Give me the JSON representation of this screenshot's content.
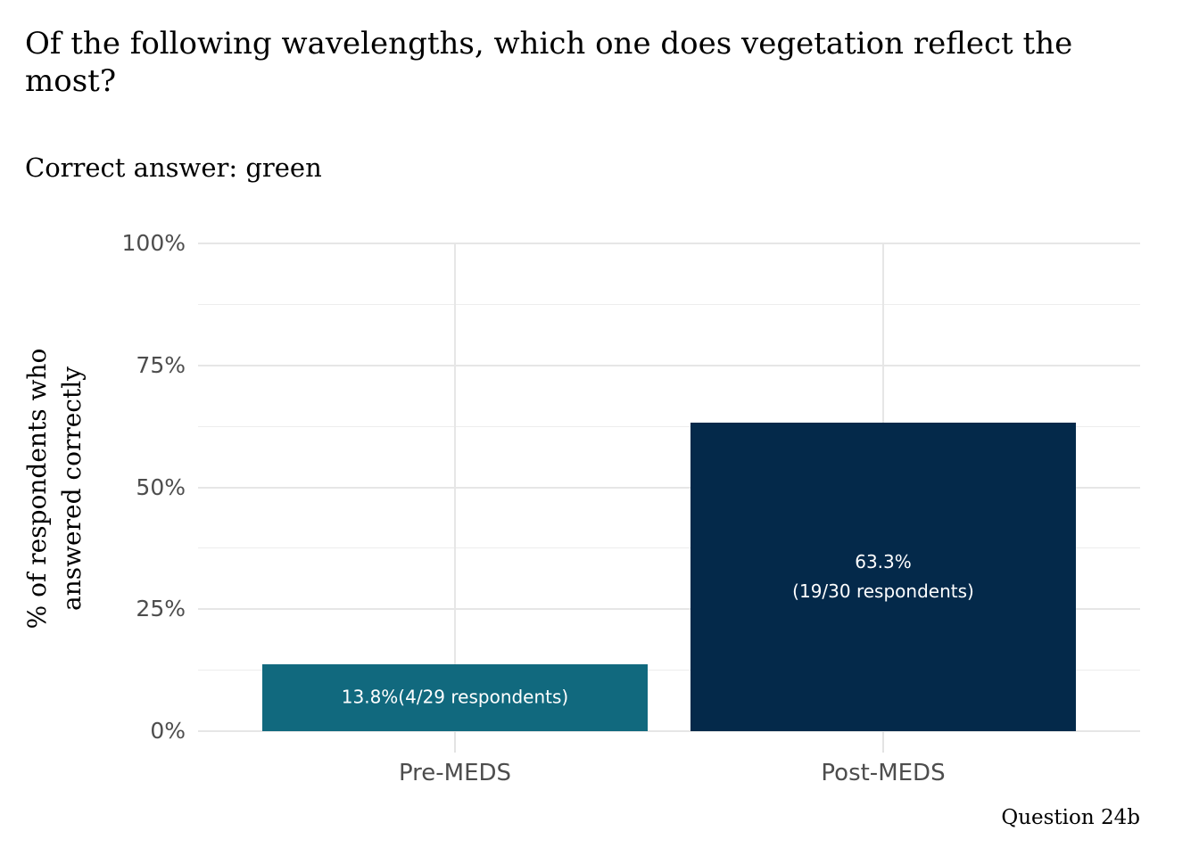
{
  "chart_data": {
    "type": "bar",
    "title": "Of the following wavelengths, which one does vegetation reflect the most?",
    "title_lines": [
      "Of the following wavelengths, which one does vegetation reflect the",
      "most?"
    ],
    "subtitle": "Correct answer: green",
    "caption": "Question 24b",
    "xlabel": "",
    "ylabel": "% of respondents who answered correctly",
    "ylabel_lines": [
      "% of respondents who",
      "answered correctly"
    ],
    "categories": [
      "Pre-MEDS",
      "Post-MEDS"
    ],
    "values": [
      13.8,
      63.3
    ],
    "respondent_fractions": [
      "4/29",
      "19/30"
    ],
    "bar_labels": [
      [
        "13.8%(4/29 respondents)"
      ],
      [
        "63.3%",
        "(19/30 respondents)"
      ]
    ],
    "bar_colors": [
      "#11697E",
      "#04294A"
    ],
    "bar_label_color": "#FFFFFF",
    "ylim": [
      0,
      100
    ],
    "yticks": [
      0,
      25,
      50,
      75,
      100
    ],
    "ytick_labels": [
      "0%",
      "25%",
      "50%",
      "75%",
      "100%"
    ],
    "minor_yticks": [
      12.5,
      37.5,
      62.5,
      87.5
    ],
    "grid": true,
    "legend": false,
    "colors": {
      "axis_text": "#4D4D4D",
      "grid_major": "#E6E6E6",
      "grid_minor": "#EDEDED",
      "tick_mark": "#E3E3E3",
      "title_text": "#000000",
      "background": "#FFFFFF"
    }
  }
}
